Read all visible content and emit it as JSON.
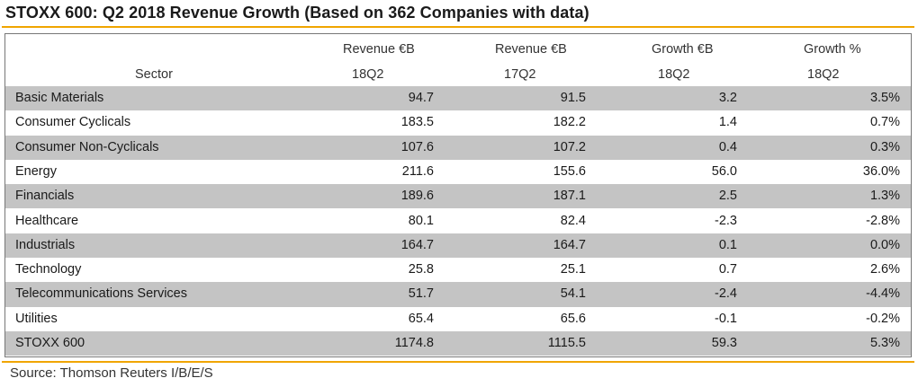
{
  "title": "STOXX 600: Q2 2018 Revenue Growth (Based on 362 Companies with data)",
  "source": "Source: Thomson Reuters I/B/E/S",
  "colors": {
    "accent_rule": "#f0a500",
    "row_shade": "#c4c4c4"
  },
  "chart_data": {
    "type": "table",
    "header": {
      "sector": "Sector",
      "columns": [
        {
          "line1": "Revenue €B",
          "line2": "18Q2"
        },
        {
          "line1": "Revenue €B",
          "line2": "17Q2"
        },
        {
          "line1": "Growth €B",
          "line2": "18Q2"
        },
        {
          "line1": "Growth %",
          "line2": "18Q2"
        }
      ]
    },
    "rows": [
      {
        "sector": "Basic Materials",
        "rev18": "94.7",
        "rev17": "91.5",
        "growth_eur": "3.2",
        "growth_pct": "3.5%"
      },
      {
        "sector": "Consumer Cyclicals",
        "rev18": "183.5",
        "rev17": "182.2",
        "growth_eur": "1.4",
        "growth_pct": "0.7%"
      },
      {
        "sector": "Consumer Non-Cyclicals",
        "rev18": "107.6",
        "rev17": "107.2",
        "growth_eur": "0.4",
        "growth_pct": "0.3%"
      },
      {
        "sector": "Energy",
        "rev18": "211.6",
        "rev17": "155.6",
        "growth_eur": "56.0",
        "growth_pct": "36.0%"
      },
      {
        "sector": "Financials",
        "rev18": "189.6",
        "rev17": "187.1",
        "growth_eur": "2.5",
        "growth_pct": "1.3%"
      },
      {
        "sector": "Healthcare",
        "rev18": "80.1",
        "rev17": "82.4",
        "growth_eur": "-2.3",
        "growth_pct": "-2.8%"
      },
      {
        "sector": "Industrials",
        "rev18": "164.7",
        "rev17": "164.7",
        "growth_eur": "0.1",
        "growth_pct": "0.0%"
      },
      {
        "sector": "Technology",
        "rev18": "25.8",
        "rev17": "25.1",
        "growth_eur": "0.7",
        "growth_pct": "2.6%"
      },
      {
        "sector": "Telecommunications Services",
        "rev18": "51.7",
        "rev17": "54.1",
        "growth_eur": "-2.4",
        "growth_pct": "-4.4%"
      },
      {
        "sector": "Utilities",
        "rev18": "65.4",
        "rev17": "65.6",
        "growth_eur": "-0.1",
        "growth_pct": "-0.2%"
      },
      {
        "sector": "STOXX 600",
        "rev18": "1174.8",
        "rev17": "1115.5",
        "growth_eur": "59.3",
        "growth_pct": "5.3%"
      }
    ]
  }
}
